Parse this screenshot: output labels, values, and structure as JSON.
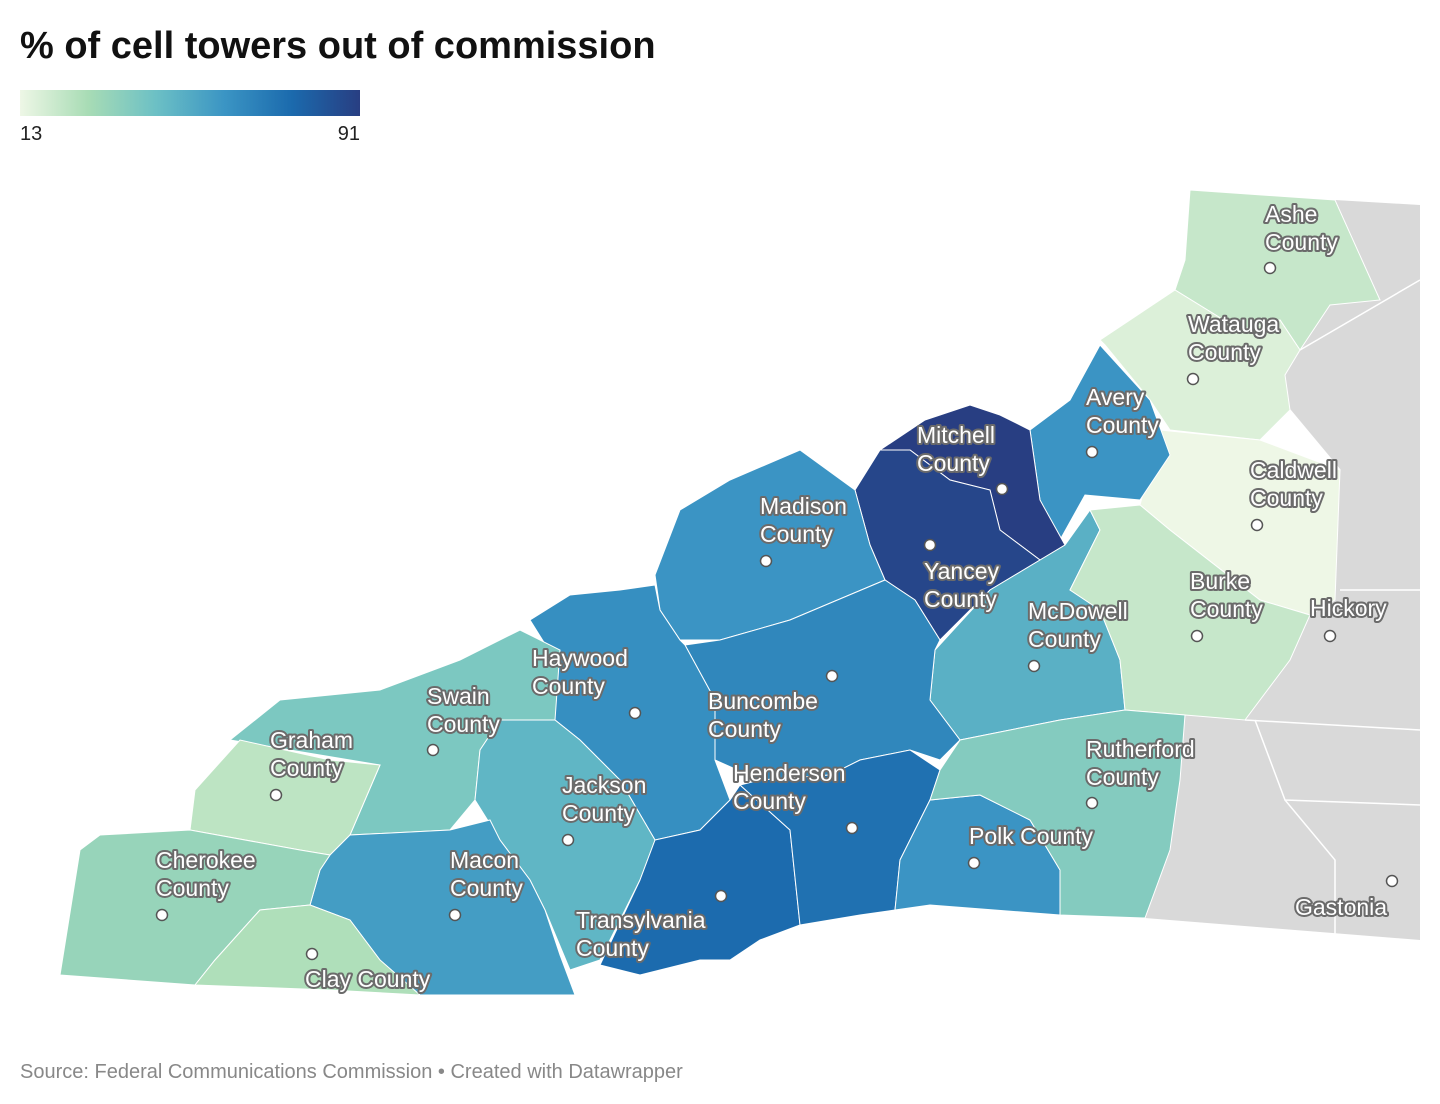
{
  "title": "% of cell towers out of commission",
  "legend": {
    "min": 13,
    "max": 91,
    "colors": [
      "#eef7e6",
      "#a8dcb5",
      "#6cc0c5",
      "#3b95c4",
      "#1b6aad",
      "#283e82"
    ]
  },
  "counties": [
    {
      "name": "Ashe County",
      "value": 22
    },
    {
      "name": "Watauga County",
      "value": 17
    },
    {
      "name": "Caldwell County",
      "value": 13
    },
    {
      "name": "Avery County",
      "value": 60
    },
    {
      "name": "Mitchell County",
      "value": 91
    },
    {
      "name": "Yancey County",
      "value": 88
    },
    {
      "name": "Madison County",
      "value": 60
    },
    {
      "name": "McDowell County",
      "value": 50
    },
    {
      "name": "Burke County",
      "value": 22
    },
    {
      "name": "Buncombe County",
      "value": 65
    },
    {
      "name": "Haywood County",
      "value": 62
    },
    {
      "name": "Swain County",
      "value": 40
    },
    {
      "name": "Graham County",
      "value": 24
    },
    {
      "name": "Jackson County",
      "value": 48
    },
    {
      "name": "Transylvania County",
      "value": 75
    },
    {
      "name": "Henderson County",
      "value": 73
    },
    {
      "name": "Polk County",
      "value": 60
    },
    {
      "name": "Rutherford County",
      "value": 38
    },
    {
      "name": "Macon County",
      "value": 57
    },
    {
      "name": "Cherokee County",
      "value": 33
    },
    {
      "name": "Clay County",
      "value": 27
    }
  ],
  "cities": [
    "Hickory",
    "Gastonia"
  ],
  "source": "Source: Federal Communications Commission • Created with Datawrapper"
}
